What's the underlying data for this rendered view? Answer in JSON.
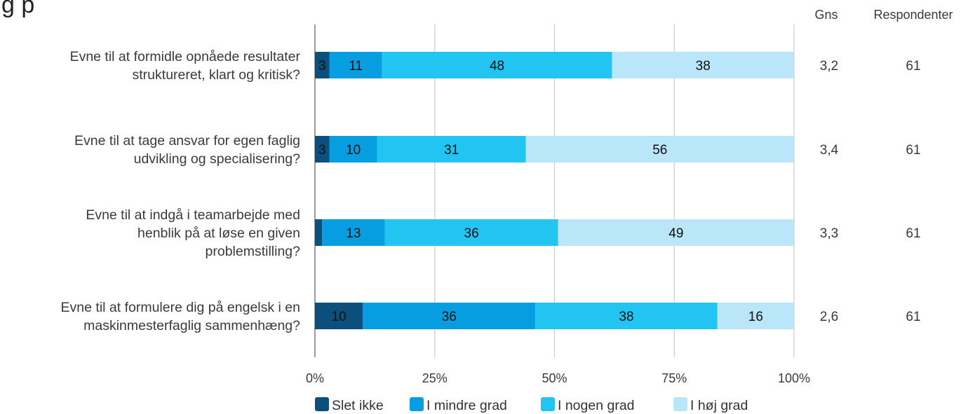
{
  "header": {
    "title_fragment": "g   p",
    "col_mean": "Gns",
    "col_respondents": "Respondenter"
  },
  "chart_data": {
    "type": "bar",
    "orientation": "horizontal",
    "stacked": true,
    "percent_scale": true,
    "categories": [
      [
        "Evne til at formidle opnåede resultater",
        "struktureret, klart og kritisk?"
      ],
      [
        "Evne til at tage ansvar for egen faglig",
        "udvikling og specialisering?"
      ],
      [
        "Evne til at indgå i teamarbejde med",
        "henblik på at løse en given",
        "problemstilling?"
      ],
      [
        "Evne til at formulere dig på engelsk i en",
        "maskinmesterfaglig sammenhæng?"
      ]
    ],
    "series": [
      {
        "name": "Slet ikke",
        "color": "#0b4f7c",
        "values": [
          3,
          3,
          1.5,
          10
        ],
        "labels": [
          "3",
          "3",
          "",
          "10"
        ]
      },
      {
        "name": "I mindre grad",
        "color": "#069ee0",
        "values": [
          11,
          10,
          13,
          36
        ],
        "labels": [
          "11",
          "10",
          "13",
          "36"
        ]
      },
      {
        "name": "I nogen grad",
        "color": "#22c4f2",
        "values": [
          48,
          31,
          36,
          38
        ],
        "labels": [
          "48",
          "31",
          "36",
          "38"
        ]
      },
      {
        "name": "I høj grad",
        "color": "#b9e6f8",
        "values": [
          38,
          56,
          49,
          16
        ],
        "labels": [
          "38",
          "56",
          "49",
          "16"
        ]
      }
    ],
    "xlim": [
      0,
      100
    ],
    "x_ticks": [
      "0%",
      "25%",
      "50%",
      "75%",
      "100%"
    ],
    "grid": true,
    "legend_position": "bottom",
    "mean": [
      "3,2",
      "3,4",
      "3,3",
      "2,6"
    ],
    "respondents": [
      "61",
      "61",
      "61",
      "61"
    ]
  }
}
